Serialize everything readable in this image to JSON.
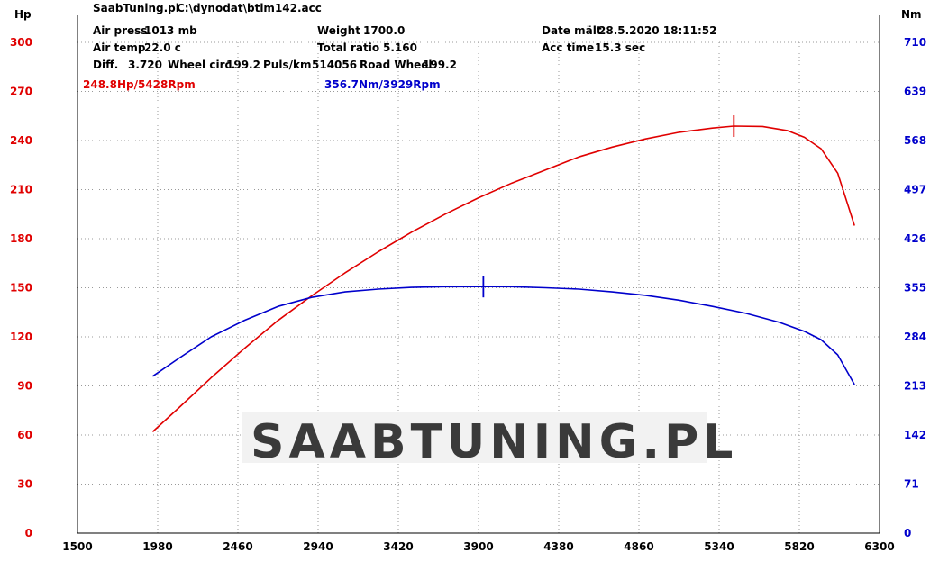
{
  "header": {
    "brand": "SaabTuning.pl",
    "file": "C:\\dynodat\\btlm142.acc",
    "air_press_label": "Air press",
    "air_press_value": "1013 mb",
    "weight_label": "Weight",
    "weight_value": "1700.0",
    "date_label": "Date mält",
    "date_value": "28.5.2020 18:11:52",
    "air_temp_label": "Air temp",
    "air_temp_value": "22.0 c",
    "total_ratio_label": "Total ratio",
    "total_ratio_value": "5.160",
    "acc_time_label": "Acc time",
    "acc_time_value": "15.3 sec",
    "diff_label": "Diff.",
    "diff_value": "3.720",
    "wheel_circ_label": "Wheel circ.",
    "wheel_circ_value": "199.2",
    "puls_label": "Puls/km",
    "puls_value": "514056",
    "road_wheel_label": "Road Wheel",
    "road_wheel_value": "199.2"
  },
  "watermark": "SAABTUNING.PL",
  "chart_data": {
    "type": "line",
    "xlim": [
      1500,
      6300
    ],
    "x_ticks": [
      1500,
      1980,
      2460,
      2940,
      3420,
      3900,
      4380,
      4860,
      5340,
      5820,
      6300
    ],
    "y_left": {
      "label": "Hp",
      "lim": [
        0,
        300
      ],
      "ticks": [
        0,
        30,
        60,
        90,
        120,
        150,
        180,
        210,
        240,
        270,
        300
      ],
      "color": "#e00000"
    },
    "y_right": {
      "label": "Nm",
      "lim": [
        0,
        710
      ],
      "ticks": [
        0,
        71,
        142,
        213,
        284,
        355,
        426,
        497,
        568,
        639,
        710
      ],
      "color": "#0000cc"
    },
    "annotations": {
      "power_peak": "248.8Hp/5428Rpm",
      "torque_peak": "356.7Nm/3929Rpm"
    },
    "series": [
      {
        "axis": "left",
        "color": "#e00000",
        "peak": {
          "x": 5428,
          "y": 248.8
        },
        "points": [
          [
            1950,
            62
          ],
          [
            2100,
            76
          ],
          [
            2300,
            95
          ],
          [
            2500,
            113
          ],
          [
            2700,
            130
          ],
          [
            2900,
            145
          ],
          [
            3100,
            159
          ],
          [
            3300,
            172
          ],
          [
            3500,
            184
          ],
          [
            3700,
            195
          ],
          [
            3900,
            205
          ],
          [
            4100,
            214
          ],
          [
            4300,
            222
          ],
          [
            4500,
            230
          ],
          [
            4700,
            236
          ],
          [
            4900,
            241
          ],
          [
            5100,
            245
          ],
          [
            5300,
            247.6
          ],
          [
            5428,
            248.8
          ],
          [
            5600,
            248.6
          ],
          [
            5750,
            246
          ],
          [
            5850,
            242
          ],
          [
            5950,
            235
          ],
          [
            6050,
            220
          ],
          [
            6150,
            188
          ]
        ]
      },
      {
        "axis": "right",
        "color": "#0000cc",
        "peak": {
          "x": 3929,
          "y": 356.7
        },
        "points": [
          [
            1950,
            227
          ],
          [
            2100,
            252
          ],
          [
            2300,
            284
          ],
          [
            2500,
            308
          ],
          [
            2700,
            328
          ],
          [
            2900,
            341
          ],
          [
            3100,
            349
          ],
          [
            3300,
            353
          ],
          [
            3500,
            355.5
          ],
          [
            3700,
            356.5
          ],
          [
            3929,
            356.7
          ],
          [
            4100,
            356.5
          ],
          [
            4300,
            355
          ],
          [
            4500,
            353
          ],
          [
            4700,
            349
          ],
          [
            4900,
            344
          ],
          [
            5100,
            337
          ],
          [
            5300,
            328
          ],
          [
            5500,
            318
          ],
          [
            5700,
            305
          ],
          [
            5850,
            292
          ],
          [
            5950,
            280
          ],
          [
            6050,
            258
          ],
          [
            6150,
            215
          ]
        ]
      }
    ]
  }
}
